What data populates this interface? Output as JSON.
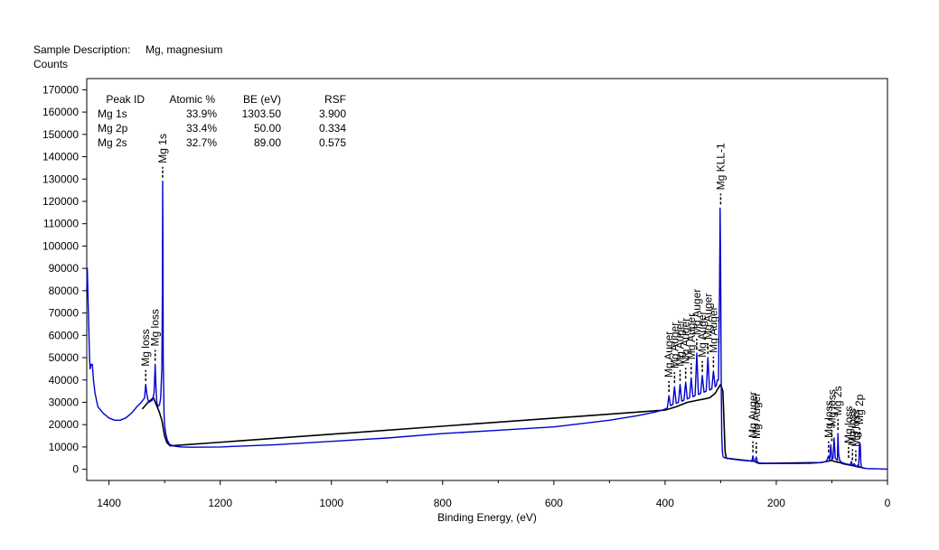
{
  "header": {
    "sample_label": "Sample Description:",
    "sample_value": "Mg, magnesium",
    "ylabel": "Counts"
  },
  "peak_table": {
    "columns": [
      "Peak ID",
      "Atomic %",
      "BE (eV)",
      "RSF"
    ],
    "rows": [
      [
        "Mg 1s",
        "33.9%",
        "1303.50",
        "3.900"
      ],
      [
        "Mg 2p",
        "33.4%",
        "50.00",
        "0.334"
      ],
      [
        "Mg 2s",
        "32.7%",
        "89.00",
        "0.575"
      ]
    ]
  },
  "chart_data": {
    "type": "line",
    "title": "",
    "xlabel": "Binding Energy, (eV)",
    "ylabel": "Counts",
    "xlim": [
      1440,
      0
    ],
    "ylim": [
      -5000,
      175000
    ],
    "x_reversed": true,
    "grid": false,
    "xticks": [
      1400,
      1200,
      1000,
      800,
      600,
      400,
      200,
      0
    ],
    "yticks": [
      0,
      10000,
      20000,
      30000,
      40000,
      50000,
      60000,
      70000,
      80000,
      90000,
      100000,
      110000,
      120000,
      130000,
      140000,
      150000,
      160000,
      170000
    ],
    "colors": {
      "spectrum": "#0000cc",
      "envelope": "#000000",
      "marker": "#000000"
    },
    "series": [
      {
        "role": "spectrum",
        "x": [
          1440,
          1439,
          1437,
          1435,
          1434,
          1432,
          1430,
          1428,
          1425,
          1420,
          1410,
          1400,
          1390,
          1380,
          1370,
          1360,
          1350,
          1342,
          1336,
          1334,
          1332,
          1330,
          1328,
          1325,
          1322,
          1319,
          1318,
          1317,
          1316,
          1315,
          1314,
          1312,
          1309,
          1307,
          1305,
          1304,
          1303.5,
          1303,
          1302.5,
          1301,
          1300,
          1298,
          1295,
          1292,
          1290,
          1288,
          1285,
          1280,
          1270,
          1250,
          1200,
          1100,
          1000,
          900,
          800,
          700,
          600,
          500,
          450,
          420,
          405,
          400,
          396,
          393,
          390,
          386,
          383,
          380,
          376,
          373,
          370,
          366,
          363,
          360,
          356,
          353,
          350,
          346,
          343,
          340,
          336,
          333,
          330,
          326,
          323,
          320,
          316,
          313,
          310,
          308,
          306,
          304,
          302,
          301,
          300,
          299,
          298,
          297,
          296,
          295,
          293,
          290,
          285,
          280,
          270,
          260,
          250,
          244,
          242,
          240,
          238,
          236,
          234,
          232,
          230,
          220,
          200,
          180,
          160,
          140,
          130,
          120,
          110,
          106,
          104,
          102,
          100,
          98,
          96,
          94,
          92,
          90,
          89,
          88,
          86,
          82,
          78,
          74,
          70,
          67,
          65,
          63,
          60,
          57,
          55,
          53,
          52,
          51,
          50,
          49,
          48,
          47,
          45,
          42,
          40,
          35,
          30,
          20,
          10,
          0
        ],
        "y": [
          80000,
          90000,
          70000,
          50000,
          45000,
          47000,
          47000,
          40000,
          34000,
          28000,
          25000,
          23000,
          22000,
          22000,
          23000,
          25000,
          28000,
          30000,
          32000,
          38000,
          34000,
          31000,
          30000,
          30500,
          31000,
          34000,
          40000,
          47000,
          40000,
          34000,
          30000,
          28000,
          29000,
          32000,
          45000,
          80000,
          129000,
          100000,
          50000,
          25000,
          20000,
          16000,
          13000,
          11500,
          11000,
          10800,
          10500,
          10300,
          10000,
          9900,
          10000,
          11000,
          12500,
          14000,
          16000,
          17500,
          19000,
          22000,
          24000,
          25500,
          26500,
          27000,
          27500,
          33000,
          28500,
          29000,
          37000,
          29500,
          30000,
          38000,
          30500,
          31000,
          39000,
          31500,
          32000,
          41000,
          32500,
          33000,
          52000,
          33500,
          34000,
          42000,
          34500,
          35000,
          50000,
          35500,
          36000,
          44000,
          37000,
          37500,
          40000,
          40000,
          82000,
          117000,
          90000,
          40000,
          15000,
          8000,
          6000,
          5500,
          5200,
          5000,
          4800,
          4600,
          4300,
          4000,
          3800,
          3700,
          6000,
          3600,
          3500,
          5500,
          3300,
          3000,
          2800,
          2700,
          2600,
          2600,
          2600,
          2700,
          2800,
          3000,
          3500,
          6000,
          4000,
          11000,
          4500,
          5000,
          14000,
          5000,
          4500,
          4000,
          16000,
          7000,
          4000,
          3000,
          2700,
          2400,
          2200,
          2000,
          3500,
          1800,
          2500,
          1500,
          1200,
          2000,
          1000,
          6000,
          12000,
          11000,
          3000,
          1000,
          700,
          500,
          400,
          300,
          250,
          200,
          150,
          100
        ]
      },
      {
        "role": "envelope",
        "x": [
          1340,
          1330,
          1320,
          1315,
          1310,
          1305,
          1300,
          1296,
          1290,
          400,
          380,
          360,
          340,
          330,
          320,
          310,
          305,
          300,
          296,
          292,
          290,
          250,
          240,
          235,
          230,
          120,
          110,
          100,
          95,
          90,
          85,
          80,
          70,
          60,
          55,
          50,
          45,
          40
        ],
        "y": [
          27000,
          30000,
          32000,
          29000,
          26000,
          22000,
          15000,
          12000,
          10500,
          26500,
          28000,
          30000,
          31000,
          31500,
          32000,
          34000,
          36000,
          38000,
          35000,
          8000,
          5000,
          3800,
          3600,
          3000,
          2600,
          3000,
          3500,
          4000,
          3500,
          3200,
          3000,
          2500,
          2000,
          1500,
          1200,
          1000,
          700,
          400
        ]
      }
    ],
    "annotations": [
      {
        "label": "Mg loss",
        "x": 1334,
        "y": 38000
      },
      {
        "label": "Mg loss",
        "x": 1317,
        "y": 47000
      },
      {
        "label": "Mg 1s",
        "x": 1303.5,
        "y": 129000
      },
      {
        "label": "Mg Auger",
        "x": 393,
        "y": 33000
      },
      {
        "label": "Mg Auger",
        "x": 383,
        "y": 37000
      },
      {
        "label": "Mg Auger",
        "x": 373,
        "y": 38000
      },
      {
        "label": "Mg Auger",
        "x": 363,
        "y": 39000
      },
      {
        "label": "Mg Auger",
        "x": 353,
        "y": 41000
      },
      {
        "label": "Mg Auger",
        "x": 343,
        "y": 52000
      },
      {
        "label": "Mg Auger",
        "x": 333,
        "y": 42000
      },
      {
        "label": "Mg Auger",
        "x": 323,
        "y": 50000
      },
      {
        "label": "Mg Auger",
        "x": 313,
        "y": 44000
      },
      {
        "label": "Mg KLL-1",
        "x": 300,
        "y": 117000
      },
      {
        "label": "Mg Auger",
        "x": 242,
        "y": 6000
      },
      {
        "label": "Mg Auger",
        "x": 236,
        "y": 5500
      },
      {
        "label": "Mg loss",
        "x": 106,
        "y": 6000
      },
      {
        "label": "Mg loss",
        "x": 100,
        "y": 11000
      },
      {
        "label": "Mg 2s",
        "x": 89,
        "y": 16000
      },
      {
        "label": "Mg loss",
        "x": 70,
        "y": 3500
      },
      {
        "label": "Mg loss",
        "x": 63,
        "y": 2500
      },
      {
        "label": "Mg loss",
        "x": 57,
        "y": 2000
      },
      {
        "label": "Mg 2p",
        "x": 50,
        "y": 12000
      }
    ]
  }
}
